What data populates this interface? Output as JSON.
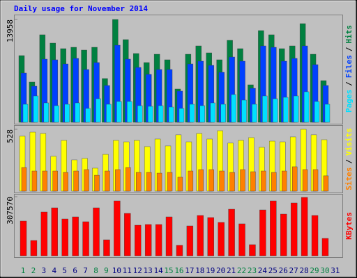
{
  "chart_data": {
    "type": "bar",
    "title": "Daily usage for November 2014",
    "categories": [
      "1",
      "2",
      "3",
      "4",
      "5",
      "6",
      "7",
      "8",
      "9",
      "10",
      "11",
      "12",
      "13",
      "14",
      "15",
      "16",
      "17",
      "18",
      "19",
      "20",
      "21",
      "22",
      "23",
      "24",
      "25",
      "26",
      "27",
      "28",
      "29",
      "30",
      "31"
    ],
    "category_colors": [
      "#008040",
      "#008040",
      "#000080",
      "#000080",
      "#000080",
      "#000080",
      "#000080",
      "#008040",
      "#008040",
      "#000080",
      "#000080",
      "#000080",
      "#000080",
      "#000080",
      "#008040",
      "#008040",
      "#000080",
      "#000080",
      "#000080",
      "#000080",
      "#000080",
      "#008040",
      "#008040",
      "#000080",
      "#000080",
      "#000080",
      "#000080",
      "#000080",
      "#008040",
      "#008040",
      "#000080"
    ],
    "legend_separator": "/",
    "panels": [
      {
        "ylim": [
          0,
          13958
        ],
        "yticks": [
          13958
        ],
        "series": [
          {
            "name": "Hits",
            "color": "#008040",
            "values": [
              9054,
              5470,
              11883,
              10751,
              9997,
              10185,
              9808,
              10185,
              5941,
              13958,
              11223,
              9337,
              8111,
              9242,
              8488,
              4527,
              9242,
              10374,
              9431,
              8488,
              11129,
              9997,
              5093,
              12449,
              11883,
              9997,
              10374,
              13392,
              9242,
              5659,
              0
            ]
          },
          {
            "name": "Files",
            "color": "#0040ff",
            "values": [
              6696,
              4904,
              8582,
              8488,
              7922,
              8677,
              7168,
              8111,
              4998,
              10468,
              8582,
              7450,
              6507,
              7168,
              7168,
              4244,
              7922,
              8299,
              7733,
              6790,
              8865,
              8299,
              4621,
              10374,
              10185,
              8299,
              8677,
              10374,
              7828,
              4998,
              0
            ]
          },
          {
            "name": "Pages",
            "color": "#00e0ff",
            "values": [
              2452,
              3584,
              2641,
              2263,
              2452,
              2641,
              1886,
              3207,
              2452,
              2829,
              2829,
              2263,
              2169,
              2263,
              2075,
              1886,
              2452,
              2263,
              2641,
              2452,
              3772,
              3018,
              2452,
              3584,
              3207,
              3395,
              3584,
              4150,
              2829,
              2452,
              0
            ]
          }
        ]
      },
      {
        "ylim": [
          0,
          528
        ],
        "yticks": [
          528
        ],
        "series": [
          {
            "name": "Visits",
            "color": "#ffff00",
            "values": [
              469,
              504,
              492,
              297,
              433,
              267,
              279,
              196,
              314,
              433,
              421,
              433,
              380,
              445,
              386,
              481,
              421,
              492,
              445,
              516,
              410,
              433,
              457,
              374,
              427,
              421,
              463,
              528,
              481,
              439,
              0
            ]
          },
          {
            "name": "Sites",
            "color": "#ff8000",
            "values": [
              202,
              172,
              172,
              172,
              160,
              172,
              184,
              136,
              172,
              184,
              202,
              160,
              160,
              154,
              160,
              119,
              172,
              184,
              184,
              172,
              160,
              184,
              166,
              172,
              160,
              172,
              208,
              184,
              184,
              131,
              0
            ]
          }
        ]
      },
      {
        "ylim": [
          0,
          307570
        ],
        "yticks": [
          307570
        ],
        "series": [
          {
            "name": "KBytes",
            "color": "#ff0000",
            "values": [
              180923,
              79606,
              227962,
              249673,
              191778,
              202634,
              177305,
              249673,
              83225,
              285858,
              220725,
              159213,
              162831,
              162831,
              202634,
              54277,
              155594,
              209869,
              199016,
              173687,
              242436,
              166450,
              57895,
              238818,
              285858,
              217108,
              275004,
              303951,
              209869,
              90462,
              0
            ]
          }
        ]
      }
    ]
  }
}
